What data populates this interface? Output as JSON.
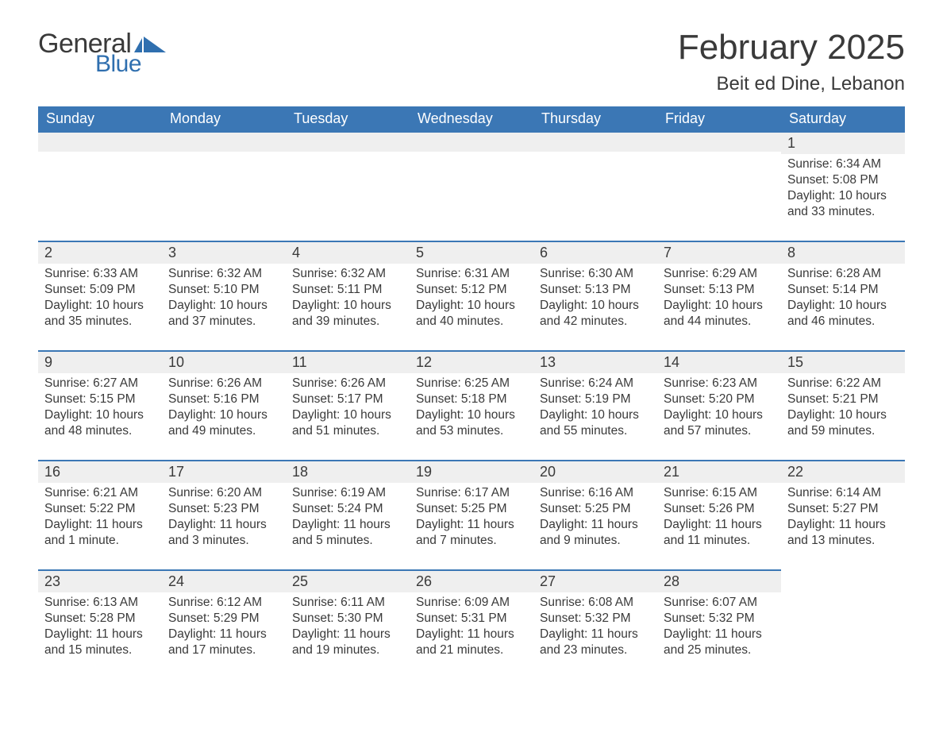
{
  "logo": {
    "word1": "General",
    "word2": "Blue",
    "flag_color": "#2f6faf"
  },
  "header": {
    "month_title": "February 2025",
    "location": "Beit ed Dine, Lebanon"
  },
  "theme": {
    "header_bg": "#3b77b5",
    "header_fg": "#ffffff",
    "daynum_bg": "#efefef",
    "border_color": "#3b77b5",
    "text_color": "#3a3a3a",
    "background": "#ffffff"
  },
  "calendar": {
    "weekdays": [
      "Sunday",
      "Monday",
      "Tuesday",
      "Wednesday",
      "Thursday",
      "Friday",
      "Saturday"
    ],
    "weeks": [
      [
        null,
        null,
        null,
        null,
        null,
        null,
        {
          "n": "1",
          "sunrise": "6:34 AM",
          "sunset": "5:08 PM",
          "daylight": "10 hours and 33 minutes."
        }
      ],
      [
        {
          "n": "2",
          "sunrise": "6:33 AM",
          "sunset": "5:09 PM",
          "daylight": "10 hours and 35 minutes."
        },
        {
          "n": "3",
          "sunrise": "6:32 AM",
          "sunset": "5:10 PM",
          "daylight": "10 hours and 37 minutes."
        },
        {
          "n": "4",
          "sunrise": "6:32 AM",
          "sunset": "5:11 PM",
          "daylight": "10 hours and 39 minutes."
        },
        {
          "n": "5",
          "sunrise": "6:31 AM",
          "sunset": "5:12 PM",
          "daylight": "10 hours and 40 minutes."
        },
        {
          "n": "6",
          "sunrise": "6:30 AM",
          "sunset": "5:13 PM",
          "daylight": "10 hours and 42 minutes."
        },
        {
          "n": "7",
          "sunrise": "6:29 AM",
          "sunset": "5:13 PM",
          "daylight": "10 hours and 44 minutes."
        },
        {
          "n": "8",
          "sunrise": "6:28 AM",
          "sunset": "5:14 PM",
          "daylight": "10 hours and 46 minutes."
        }
      ],
      [
        {
          "n": "9",
          "sunrise": "6:27 AM",
          "sunset": "5:15 PM",
          "daylight": "10 hours and 48 minutes."
        },
        {
          "n": "10",
          "sunrise": "6:26 AM",
          "sunset": "5:16 PM",
          "daylight": "10 hours and 49 minutes."
        },
        {
          "n": "11",
          "sunrise": "6:26 AM",
          "sunset": "5:17 PM",
          "daylight": "10 hours and 51 minutes."
        },
        {
          "n": "12",
          "sunrise": "6:25 AM",
          "sunset": "5:18 PM",
          "daylight": "10 hours and 53 minutes."
        },
        {
          "n": "13",
          "sunrise": "6:24 AM",
          "sunset": "5:19 PM",
          "daylight": "10 hours and 55 minutes."
        },
        {
          "n": "14",
          "sunrise": "6:23 AM",
          "sunset": "5:20 PM",
          "daylight": "10 hours and 57 minutes."
        },
        {
          "n": "15",
          "sunrise": "6:22 AM",
          "sunset": "5:21 PM",
          "daylight": "10 hours and 59 minutes."
        }
      ],
      [
        {
          "n": "16",
          "sunrise": "6:21 AM",
          "sunset": "5:22 PM",
          "daylight": "11 hours and 1 minute."
        },
        {
          "n": "17",
          "sunrise": "6:20 AM",
          "sunset": "5:23 PM",
          "daylight": "11 hours and 3 minutes."
        },
        {
          "n": "18",
          "sunrise": "6:19 AM",
          "sunset": "5:24 PM",
          "daylight": "11 hours and 5 minutes."
        },
        {
          "n": "19",
          "sunrise": "6:17 AM",
          "sunset": "5:25 PM",
          "daylight": "11 hours and 7 minutes."
        },
        {
          "n": "20",
          "sunrise": "6:16 AM",
          "sunset": "5:25 PM",
          "daylight": "11 hours and 9 minutes."
        },
        {
          "n": "21",
          "sunrise": "6:15 AM",
          "sunset": "5:26 PM",
          "daylight": "11 hours and 11 minutes."
        },
        {
          "n": "22",
          "sunrise": "6:14 AM",
          "sunset": "5:27 PM",
          "daylight": "11 hours and 13 minutes."
        }
      ],
      [
        {
          "n": "23",
          "sunrise": "6:13 AM",
          "sunset": "5:28 PM",
          "daylight": "11 hours and 15 minutes."
        },
        {
          "n": "24",
          "sunrise": "6:12 AM",
          "sunset": "5:29 PM",
          "daylight": "11 hours and 17 minutes."
        },
        {
          "n": "25",
          "sunrise": "6:11 AM",
          "sunset": "5:30 PM",
          "daylight": "11 hours and 19 minutes."
        },
        {
          "n": "26",
          "sunrise": "6:09 AM",
          "sunset": "5:31 PM",
          "daylight": "11 hours and 21 minutes."
        },
        {
          "n": "27",
          "sunrise": "6:08 AM",
          "sunset": "5:32 PM",
          "daylight": "11 hours and 23 minutes."
        },
        {
          "n": "28",
          "sunrise": "6:07 AM",
          "sunset": "5:32 PM",
          "daylight": "11 hours and 25 minutes."
        },
        null
      ]
    ],
    "labels": {
      "sunrise": "Sunrise: ",
      "sunset": "Sunset: ",
      "daylight": "Daylight: "
    }
  }
}
